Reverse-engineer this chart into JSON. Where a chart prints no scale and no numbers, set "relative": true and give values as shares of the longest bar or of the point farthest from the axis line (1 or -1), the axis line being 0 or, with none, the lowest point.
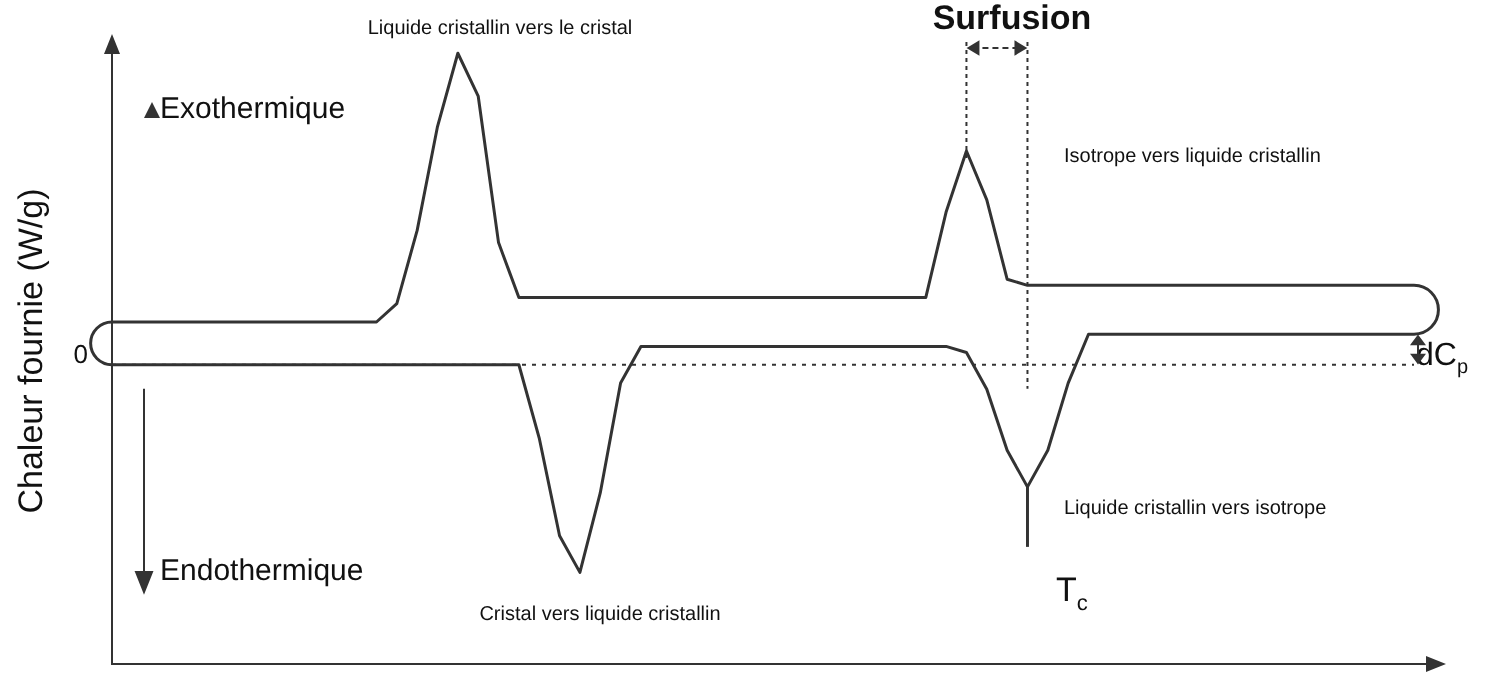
{
  "chart_data": {
    "type": "line",
    "relative": true,
    "ylabel": "Chaleur fournie (W/g)",
    "categories": [
      null,
      null,
      null,
      null,
      null,
      null,
      null,
      null,
      null,
      null,
      null,
      null,
      null,
      null,
      null,
      null,
      null,
      null,
      null,
      null,
      null,
      null,
      null,
      null,
      null,
      null,
      null,
      null,
      null,
      null,
      null,
      null,
      null,
      null,
      null,
      null,
      null,
      null,
      null,
      null,
      null,
      null,
      null,
      null,
      null,
      null,
      null,
      null,
      null,
      null,
      null,
      null,
      null,
      null,
      null,
      null,
      null,
      null,
      null,
      null,
      null,
      null,
      null,
      null,
      null
    ],
    "series": [
      {
        "color": "#333333",
        "values": [
          0.56,
          0.56,
          0.56,
          0.56,
          0.56,
          0.56,
          0.56,
          0.56,
          0.56,
          0.56,
          0.56,
          0.56,
          0.56,
          0.56,
          0.59,
          0.71,
          0.88,
          1,
          0.93,
          0.69,
          0.6,
          0.6,
          0.6,
          0.6,
          0.6,
          0.6,
          0.6,
          0.6,
          0.6,
          0.6,
          0.6,
          0.6,
          0.6,
          0.6,
          0.6,
          0.6,
          0.6,
          0.6,
          0.6,
          0.6,
          0.6,
          0.74,
          0.84,
          0.76,
          0.63,
          0.62,
          0.62,
          0.62,
          0.62,
          0.62,
          0.62,
          0.62,
          0.62,
          0.62,
          0.62,
          0.62,
          0.62,
          0.62,
          0.62,
          0.62,
          0.62,
          0.62,
          0.62,
          0.62,
          0.62
        ]
      },
      {
        "color": "#333333",
        "values": [
          0.49,
          0.49,
          0.49,
          0.49,
          0.49,
          0.49,
          0.49,
          0.49,
          0.49,
          0.49,
          0.49,
          0.49,
          0.49,
          0.49,
          0.49,
          0.49,
          0.49,
          0.49,
          0.49,
          0.49,
          0.49,
          0.37,
          0.21,
          0.15,
          0.28,
          0.46,
          0.52,
          0.52,
          0.52,
          0.52,
          0.52,
          0.52,
          0.52,
          0.52,
          0.52,
          0.52,
          0.52,
          0.52,
          0.52,
          0.52,
          0.52,
          0.52,
          0.51,
          0.45,
          0.35,
          0.29,
          0.35,
          0.46,
          0.54,
          0.54,
          0.54,
          0.54,
          0.54,
          0.54,
          0.54,
          0.54,
          0.54,
          0.54,
          0.54,
          0.54,
          0.54,
          0.54,
          0.54,
          0.54,
          0.54
        ]
      }
    ],
    "ref_lines": [
      {
        "axis": "y",
        "value": 0.49,
        "line_style": "dotted"
      }
    ],
    "annotations": [
      "Liquide cristallin vers le cristal",
      "Isotrope vers liquide cristallin",
      "Cristal vers liquide cristallin",
      "Liquide cristallin vers isotrope",
      "Surfusion",
      "dC$_{p}$",
      "T$_{c}$",
      "Exothermique",
      "Endothermique",
      "0"
    ],
    "grid": false,
    "marker": "none",
    "line_style": "solid"
  }
}
